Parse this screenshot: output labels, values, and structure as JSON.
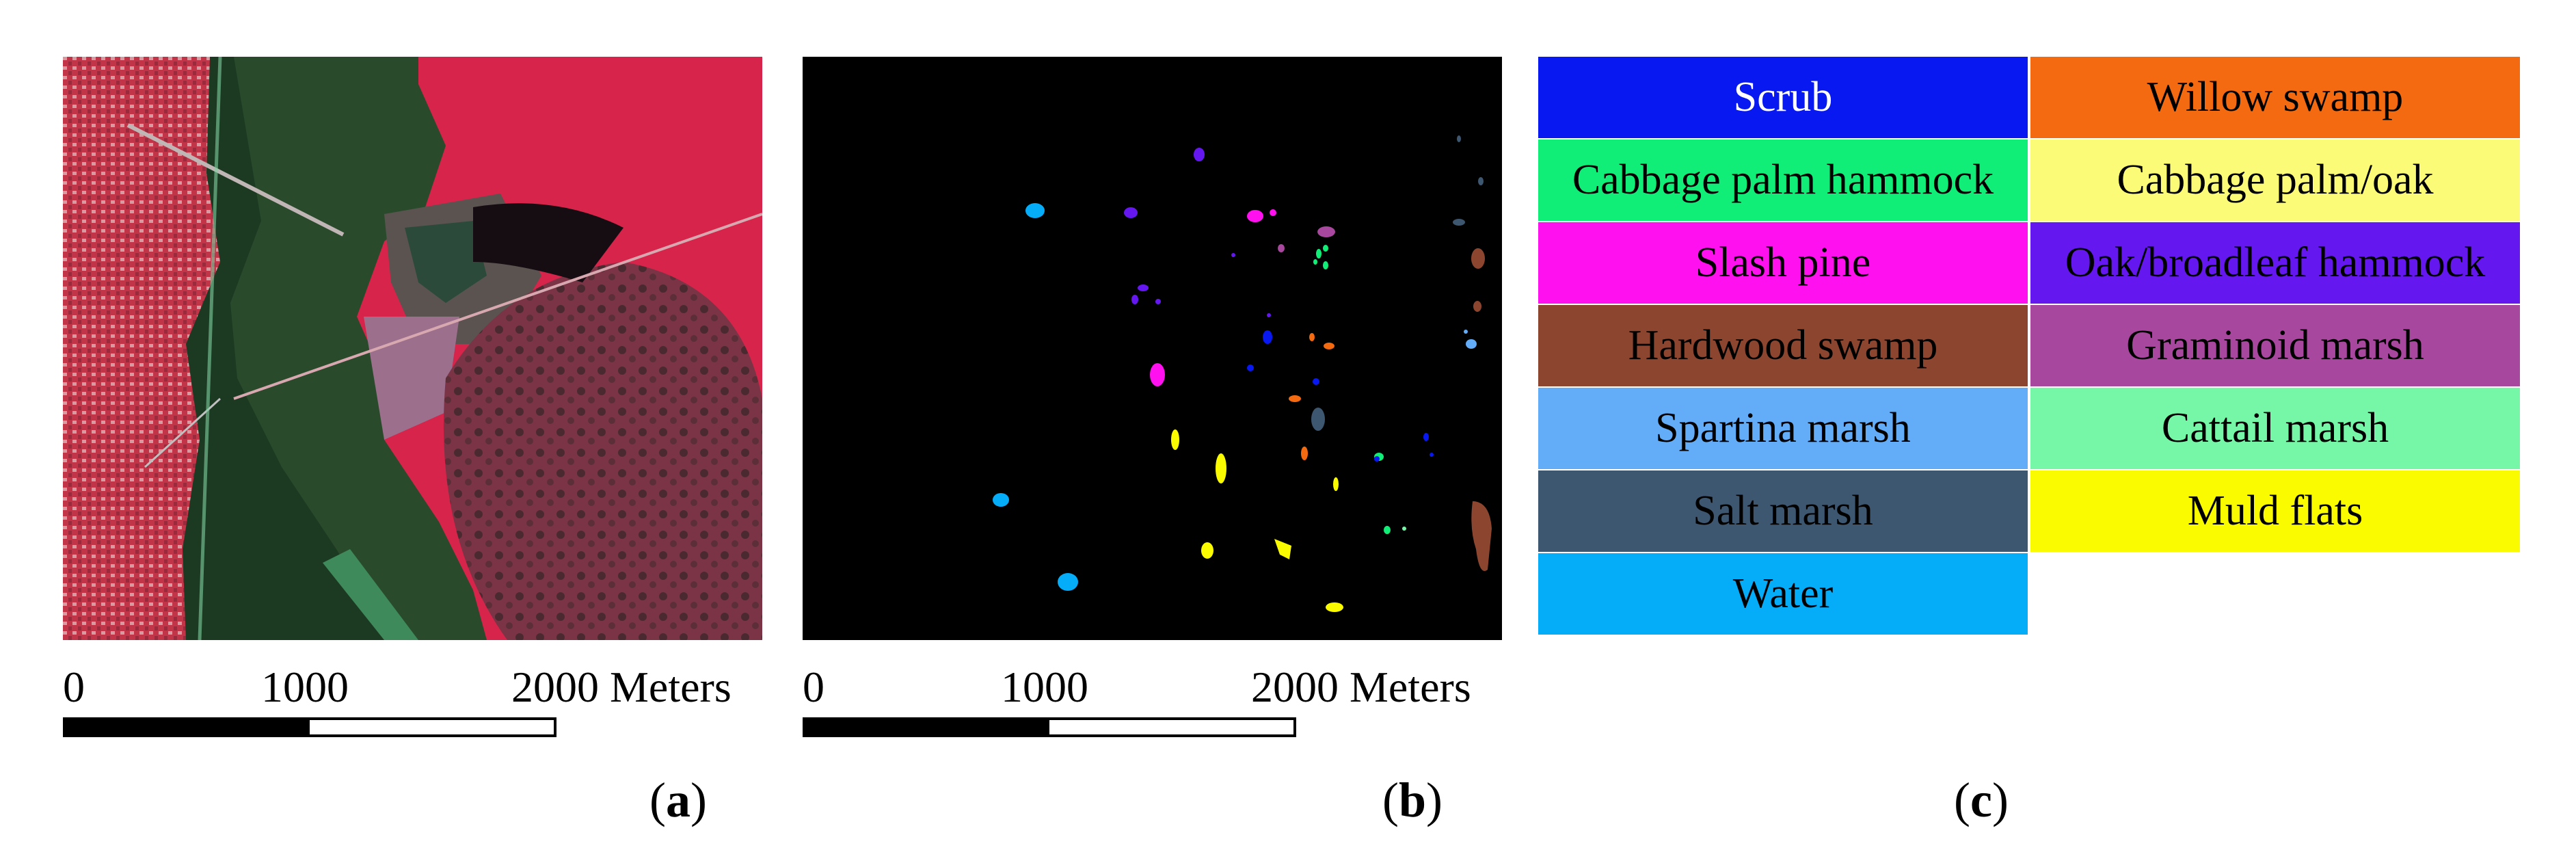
{
  "figure": {
    "panel_a": {
      "scale_ticks": [
        "0",
        "1000",
        "2000 Meters"
      ],
      "caption": {
        "open": "(",
        "letter": "a",
        "close": ")"
      }
    },
    "panel_b": {
      "scale_ticks": [
        "0",
        "1000",
        "2000 Meters"
      ],
      "caption": {
        "open": "(",
        "letter": "b",
        "close": ")"
      }
    },
    "panel_c": {
      "caption": {
        "open": "(",
        "letter": "c",
        "close": ")"
      }
    },
    "legend": [
      {
        "label": "Scrub",
        "color": "#0818f0",
        "text_color": "#ffffff"
      },
      {
        "label": "Willow swamp",
        "color": "#f46a10",
        "text_color": "#000000"
      },
      {
        "label": "Cabbage palm hammock",
        "color": "#10ee78",
        "text_color": "#000000"
      },
      {
        "label": "Cabbage palm/oak",
        "color": "#fbfb78",
        "text_color": "#000000"
      },
      {
        "label": "Slash pine",
        "color": "#ff10ef",
        "text_color": "#000000"
      },
      {
        "label": "Oak/broadleaf hammock",
        "color": "#6418ef",
        "text_color": "#000000"
      },
      {
        "label": "Hardwood swamp",
        "color": "#8c4630",
        "text_color": "#000000"
      },
      {
        "label": "Graminoid marsh",
        "color": "#a8479e",
        "text_color": "#000000"
      },
      {
        "label": "Spartina marsh",
        "color": "#62acf8",
        "text_color": "#000000"
      },
      {
        "label": "Cattail marsh",
        "color": "#76f7a8",
        "text_color": "#000000"
      },
      {
        "label": "Salt marsh",
        "color": "#3e5770",
        "text_color": "#000000"
      },
      {
        "label": "Muld flats",
        "color": "#fbfb00",
        "text_color": "#000000"
      },
      {
        "label": "Water",
        "color": "#05acf8",
        "text_color": "#000000"
      }
    ],
    "ground_truth_patches": [
      {
        "class": "Water",
        "color": "#05acf8"
      },
      {
        "class": "Scrub",
        "color": "#0818f0"
      },
      {
        "class": "Slash pine",
        "color": "#ff10ef"
      },
      {
        "class": "Oak/broadleaf hammock",
        "color": "#6418ef"
      },
      {
        "class": "Cabbage palm hammock",
        "color": "#10ee78"
      },
      {
        "class": "Graminoid marsh",
        "color": "#a8479e"
      },
      {
        "class": "Hardwood swamp",
        "color": "#8c4630"
      },
      {
        "class": "Willow swamp",
        "color": "#f46a10"
      },
      {
        "class": "Salt marsh",
        "color": "#3e5770"
      },
      {
        "class": "Spartina marsh",
        "color": "#62acf8"
      },
      {
        "class": "Muld flats",
        "color": "#fbfb00"
      },
      {
        "class": "Cattail marsh",
        "color": "#76f7a8"
      }
    ]
  }
}
